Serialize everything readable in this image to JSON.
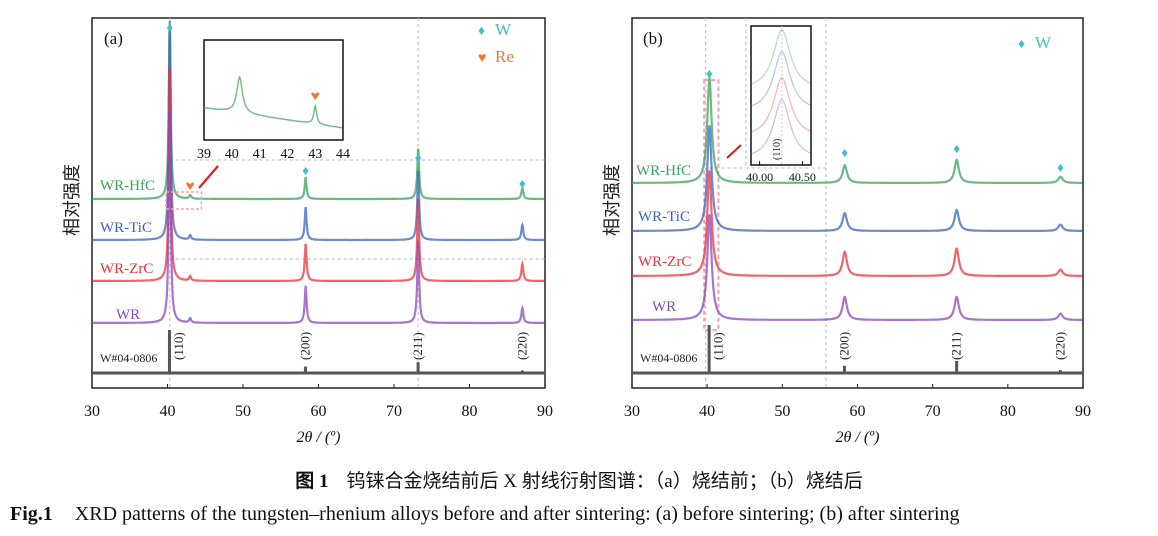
{
  "colors": {
    "WR-HfC": "#3aa35a",
    "WR-TiC": "#3a64c0",
    "WR-ZrC": "#e8323c",
    "WR": "#8a48b8",
    "ref": "#555555",
    "W_marker": "#40c0c8",
    "Re_marker": "#f07830",
    "arrow": "#e02020"
  },
  "chart_data": [
    {
      "panel": "(a)",
      "type": "line",
      "title": "",
      "xlabel": "2θ / (º)",
      "ylabel": "相对强度",
      "xlim": [
        30,
        90
      ],
      "xticks": [
        30,
        40,
        50,
        60,
        70,
        80,
        90
      ],
      "grid": false,
      "legend": {
        "placement": "top-right",
        "entries": [
          {
            "symbol": "♦",
            "label": "W",
            "color_key": "W_marker"
          },
          {
            "symbol": "♥",
            "label": "Re",
            "color_key": "Re_marker"
          }
        ]
      },
      "series": [
        {
          "name": "WR-HfC",
          "color_key": "WR-HfC",
          "peaks": [
            {
              "x": 40.3,
              "h": 1.0
            },
            {
              "x": 43.0,
              "h": 0.02
            },
            {
              "x": 58.3,
              "h": 0.12
            },
            {
              "x": 73.2,
              "h": 0.28
            },
            {
              "x": 87.0,
              "h": 0.06
            }
          ]
        },
        {
          "name": "WR-TiC",
          "color_key": "WR-TiC",
          "peaks": [
            {
              "x": 40.3,
              "h": 1.0
            },
            {
              "x": 43.0,
              "h": 0.02
            },
            {
              "x": 58.3,
              "h": 0.15
            },
            {
              "x": 73.2,
              "h": 0.32
            },
            {
              "x": 87.0,
              "h": 0.07
            }
          ]
        },
        {
          "name": "WR-ZrC",
          "color_key": "WR-ZrC",
          "peaks": [
            {
              "x": 40.3,
              "h": 1.0
            },
            {
              "x": 43.0,
              "h": 0.02
            },
            {
              "x": 58.3,
              "h": 0.17
            },
            {
              "x": 73.2,
              "h": 0.38
            },
            {
              "x": 87.0,
              "h": 0.08
            }
          ]
        },
        {
          "name": "WR",
          "color_key": "WR",
          "peaks": [
            {
              "x": 40.3,
              "h": 1.0
            },
            {
              "x": 43.0,
              "h": 0.02
            },
            {
              "x": 58.3,
              "h": 0.17
            },
            {
              "x": 73.2,
              "h": 0.38
            },
            {
              "x": 87.0,
              "h": 0.07
            }
          ]
        }
      ],
      "peak_width": 0.15,
      "reference": {
        "name": "W#04-0806",
        "lines": [
          {
            "x": 40.26,
            "h": 1.0
          },
          {
            "x": 58.27,
            "h": 0.15
          },
          {
            "x": 73.19,
            "h": 0.25
          },
          {
            "x": 87.0,
            "h": 0.06
          }
        ]
      },
      "hkl_labels": [
        {
          "x": 40.3,
          "label": "(110)"
        },
        {
          "x": 58.3,
          "label": "(200)"
        },
        {
          "x": 73.2,
          "label": "(211)"
        },
        {
          "x": 87.0,
          "label": "(220)"
        }
      ],
      "w_markers_x": [
        40.3,
        58.3,
        73.2,
        87.0
      ],
      "re_marker_x": 43.0,
      "inset": {
        "xlim": [
          39,
          44
        ],
        "xticks": [
          39,
          40,
          41,
          42,
          43,
          44
        ],
        "series": "WR-HfC",
        "re_peak_x": 43.0
      }
    },
    {
      "panel": "(b)",
      "type": "line",
      "title": "",
      "xlabel": "2θ / (º)",
      "ylabel": "相对强度",
      "xlim": [
        30,
        90
      ],
      "xticks": [
        30,
        40,
        50,
        60,
        70,
        80,
        90
      ],
      "grid": false,
      "legend": {
        "placement": "top-right",
        "entries": [
          {
            "symbol": "♦",
            "label": "W",
            "color_key": "W_marker"
          }
        ]
      },
      "series": [
        {
          "name": "WR-HfC",
          "color_key": "WR-HfC",
          "peaks": [
            {
              "x": 40.3,
              "h": 1.0
            },
            {
              "x": 58.3,
              "h": 0.17
            },
            {
              "x": 73.2,
              "h": 0.22
            },
            {
              "x": 87.0,
              "h": 0.06
            }
          ]
        },
        {
          "name": "WR-TiC",
          "color_key": "WR-TiC",
          "peaks": [
            {
              "x": 40.3,
              "h": 1.0
            },
            {
              "x": 58.3,
              "h": 0.17
            },
            {
              "x": 73.2,
              "h": 0.2
            },
            {
              "x": 87.0,
              "h": 0.06
            }
          ]
        },
        {
          "name": "WR-ZrC",
          "color_key": "WR-ZrC",
          "peaks": [
            {
              "x": 40.3,
              "h": 1.0
            },
            {
              "x": 58.3,
              "h": 0.23
            },
            {
              "x": 73.2,
              "h": 0.26
            },
            {
              "x": 87.0,
              "h": 0.06
            }
          ]
        },
        {
          "name": "WR",
          "color_key": "WR",
          "peaks": [
            {
              "x": 40.3,
              "h": 1.0
            },
            {
              "x": 58.3,
              "h": 0.22
            },
            {
              "x": 73.2,
              "h": 0.22
            },
            {
              "x": 87.0,
              "h": 0.06
            }
          ]
        }
      ],
      "peak_width": 0.35,
      "reference": {
        "name": "W#04-0806",
        "lines": [
          {
            "x": 40.26,
            "h": 1.0
          },
          {
            "x": 58.27,
            "h": 0.15
          },
          {
            "x": 73.19,
            "h": 0.25
          },
          {
            "x": 87.0,
            "h": 0.06
          }
        ]
      },
      "hkl_labels": [
        {
          "x": 40.3,
          "label": "(110)"
        },
        {
          "x": 58.3,
          "label": "(200)"
        },
        {
          "x": 73.2,
          "label": "(211)"
        },
        {
          "x": 87.0,
          "label": "(220)"
        }
      ],
      "w_markers_x": [
        40.3,
        58.3,
        73.2,
        87.0
      ],
      "inset": {
        "xlim": [
          39.9,
          40.6
        ],
        "xticks_labels": [
          "40.00",
          "40.50"
        ],
        "xticks": [
          40.0,
          40.5
        ],
        "hkl_label": "(110)",
        "peak_x": 40.26
      }
    }
  ],
  "caption": {
    "cn_label": "图 1",
    "cn_text": "钨铼合金烧结前后 X 射线衍射图谱：（a）烧结前；（b）烧结后",
    "en_label": "Fig.1",
    "en_text": "XRD patterns of the tungsten–rhenium alloys before and after sintering: (a) before sintering; (b) after sintering"
  }
}
